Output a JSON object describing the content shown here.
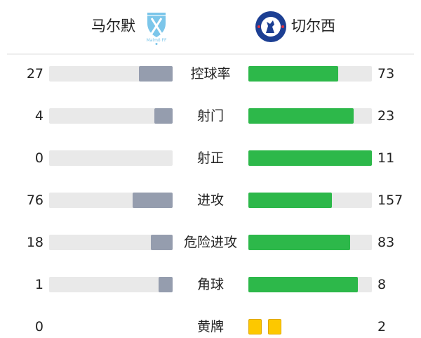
{
  "home": {
    "name": "马尔默",
    "logo_icon": "malmo-ff-crest-icon",
    "logo_text": "Malmö FF"
  },
  "away": {
    "name": "切尔西",
    "logo_icon": "chelsea-fc-crest-icon",
    "logo_text": "CHELSEA FOOTBALL CLUB"
  },
  "colors": {
    "home_bar": "#959dae",
    "away_bar": "#2db84a",
    "track": "#e9e9e9",
    "yellow_card": "#fdc800"
  },
  "stats": [
    {
      "label": "控球率",
      "home": "27",
      "away": "73"
    },
    {
      "label": "射门",
      "home": "4",
      "away": "23"
    },
    {
      "label": "射正",
      "home": "0",
      "away": "11"
    },
    {
      "label": "进攻",
      "home": "76",
      "away": "157"
    },
    {
      "label": "危险进攻",
      "home": "18",
      "away": "83"
    },
    {
      "label": "角球",
      "home": "1",
      "away": "8"
    },
    {
      "label": "黄牌",
      "home": "0",
      "away": "2",
      "type": "cards"
    }
  ]
}
